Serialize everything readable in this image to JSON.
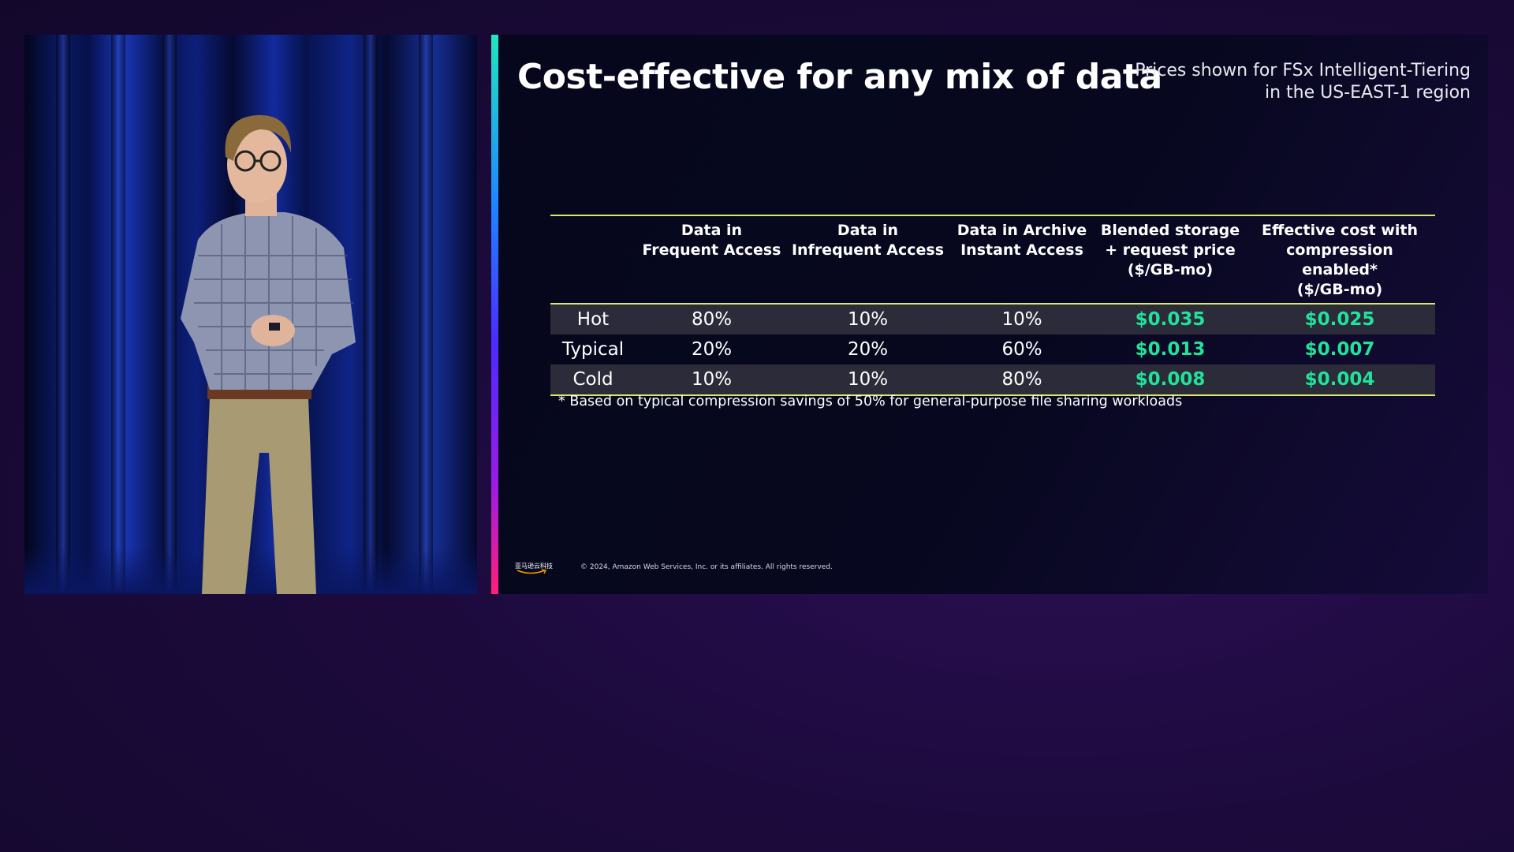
{
  "slide": {
    "title": "Cost-effective for any mix of data",
    "subtitle_line1": "Prices shown for FSx Intelligent-Tiering",
    "subtitle_line2": "in the US-EAST-1 region",
    "table": {
      "headers": [
        {
          "line1": "",
          "line2": "",
          "line3": ""
        },
        {
          "line1": "Data in",
          "line2": "Frequent Access",
          "line3": ""
        },
        {
          "line1": "Data in",
          "line2": "Infrequent Access",
          "line3": ""
        },
        {
          "line1": "Data in Archive",
          "line2": "Instant Access",
          "line3": ""
        },
        {
          "line1": "Blended storage",
          "line2": "+ request price",
          "line3": "($/GB-mo)"
        },
        {
          "line1": "Effective cost with",
          "line2": "compression enabled*",
          "line3": "($/GB-mo)"
        }
      ],
      "rows": [
        {
          "label": "Hot",
          "frequent": "80%",
          "infrequent": "10%",
          "archive": "10%",
          "blended": "$0.035",
          "effective": "$0.025"
        },
        {
          "label": "Typical",
          "frequent": "20%",
          "infrequent": "20%",
          "archive": "60%",
          "blended": "$0.013",
          "effective": "$0.007"
        },
        {
          "label": "Cold",
          "frequent": "10%",
          "infrequent": "10%",
          "archive": "80%",
          "blended": "$0.008",
          "effective": "$0.004"
        }
      ]
    },
    "footnote": "* Based on typical compression savings of 50% for general-purpose file sharing workloads",
    "logo_text": "亚马逊云科技",
    "copyright": "© 2024, Amazon Web Services, Inc. or its affiliates. All rights reserved."
  },
  "colors": {
    "background": "#1c0a3c",
    "slide_background": "#07081f",
    "price_green": "#22e29a",
    "table_rule": "#d7e86a",
    "row_shade": "#2b2b3a"
  }
}
